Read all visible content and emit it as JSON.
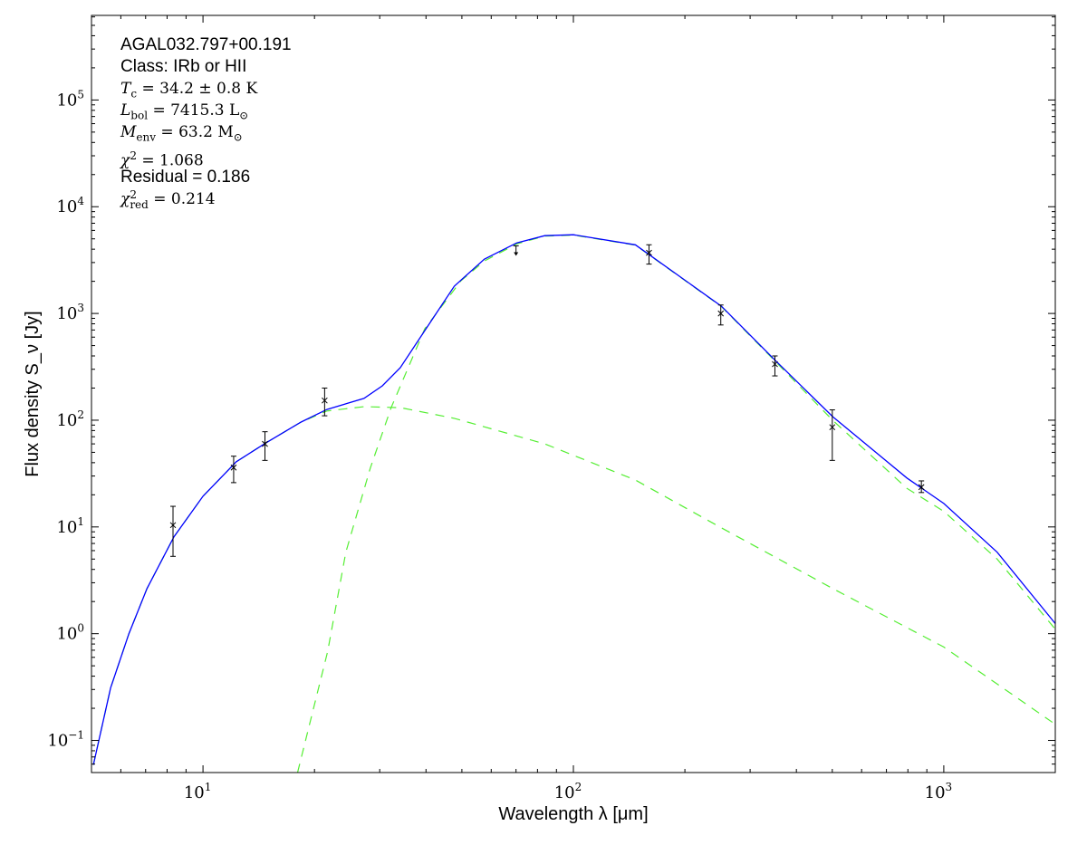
{
  "chart_data": {
    "type": "line",
    "title": "",
    "xlabel": "Wavelength λ [μm]",
    "ylabel": "Flux density S_ν [Jy]",
    "xscale": "log",
    "yscale": "log",
    "xlim": [
      5,
      2000
    ],
    "ylim": [
      0.05,
      620000
    ],
    "xticks": [
      {
        "exp": "1",
        "value": 10
      },
      {
        "exp": "2",
        "value": 100
      },
      {
        "exp": "3",
        "value": 1000
      }
    ],
    "yticks": [
      {
        "exp": "−1",
        "value": 0.1
      },
      {
        "exp": "0",
        "value": 1
      },
      {
        "exp": "1",
        "value": 10
      },
      {
        "exp": "2",
        "value": 100
      },
      {
        "exp": "3",
        "value": 1000
      },
      {
        "exp": "4",
        "value": 10000
      },
      {
        "exp": "5",
        "value": 100000
      }
    ],
    "tick_base": "10",
    "annotations": {
      "source": "AGAL032.797+00.191",
      "class": "Class: IRb or HII",
      "tc": {
        "sym": "T",
        "sub": "c",
        "rest": " = 34.2 ± 0.8 K"
      },
      "lbol": {
        "sym": "L",
        "sub": "bol",
        "rest": " = 7415.3 L",
        "sun": "⊙"
      },
      "menv": {
        "sym": "M",
        "sub": "env",
        "rest": " = 63.2 M",
        "sun": "⊙"
      },
      "chi2": {
        "sym": "χ",
        "sup": "2",
        "rest": " = 1.068"
      },
      "residual": "Residual = 0.186",
      "chi2red": {
        "sym": "χ",
        "sup": "2",
        "sub": "red",
        "rest": " = 0.214"
      }
    },
    "points": [
      {
        "x": 8.3,
        "y": 10.4,
        "lo": 5.3,
        "hi": 15.6
      },
      {
        "x": 12.1,
        "y": 36,
        "lo": 26,
        "hi": 46
      },
      {
        "x": 14.7,
        "y": 60,
        "lo": 42,
        "hi": 78
      },
      {
        "x": 21.3,
        "y": 153,
        "lo": 110,
        "hi": 200
      },
      {
        "x": 70,
        "y": 4300,
        "upper_limit": true
      },
      {
        "x": 160,
        "y": 3700,
        "lo": 2900,
        "hi": 4400
      },
      {
        "x": 250,
        "y": 1000,
        "lo": 780,
        "hi": 1200
      },
      {
        "x": 350,
        "y": 335,
        "lo": 260,
        "hi": 400
      },
      {
        "x": 500,
        "y": 86,
        "lo": 42,
        "hi": 125
      },
      {
        "x": 870,
        "y": 23.6,
        "lo": 21,
        "hi": 27
      }
    ],
    "series": [
      {
        "name": "total",
        "color": "#0000ff",
        "style": "solid",
        "x": [
          5.06,
          5.63,
          6.31,
          7.06,
          8.35,
          10,
          12.3,
          14.8,
          18.4,
          21.6,
          27.2,
          30.5,
          34.1,
          39.7,
          47.7,
          57.5,
          70.3,
          83.7,
          100,
          147,
          251,
          351,
          501,
          795,
          1000,
          1393,
          2009
        ],
        "y": [
          0.059,
          0.31,
          1.0,
          2.65,
          8.1,
          19.4,
          40.8,
          61.4,
          96,
          126,
          160,
          210,
          310,
          690,
          1800,
          3220,
          4580,
          5360,
          5460,
          4400,
          1170,
          362,
          108,
          28.7,
          16.6,
          5.8,
          1.22
        ]
      },
      {
        "name": "warm component",
        "color": "#55ee33",
        "style": "dashed",
        "x": [
          5.06,
          5.63,
          6.31,
          7.06,
          8.35,
          10,
          12.3,
          14.8,
          18.4,
          21.6,
          27.2,
          34.1,
          47.7,
          83.7,
          147,
          251,
          501,
          1000,
          2009
        ],
        "y": [
          0.059,
          0.31,
          1.0,
          2.65,
          8.1,
          19.4,
          40.8,
          61.4,
          96,
          122,
          134,
          131,
          104,
          60,
          27.5,
          9.8,
          2.65,
          0.75,
          0.14
        ]
      },
      {
        "name": "cold component",
        "color": "#55ee33",
        "style": "dashed",
        "x": [
          18.0,
          21.7,
          24.3,
          28.3,
          32.2,
          39.7,
          49.7,
          57.5,
          70.3,
          83.7,
          100,
          147,
          251,
          351,
          501,
          795,
          1000,
          1393,
          2009
        ],
        "y": [
          0.05,
          0.68,
          5.8,
          35.6,
          131,
          718,
          2020,
          3100,
          4480,
          5300,
          5420,
          4370,
          1160,
          355,
          100,
          23,
          14,
          5.0,
          1.08
        ]
      }
    ]
  }
}
